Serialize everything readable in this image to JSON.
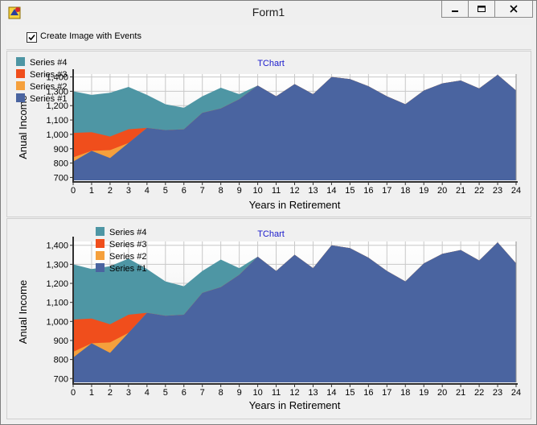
{
  "window": {
    "title": "Form1",
    "app_icon": "delphi-app-icon"
  },
  "controls": {
    "checkbox_label": "Create Image with Events",
    "checkbox_checked": true
  },
  "colors": {
    "series1": "#4a64a0",
    "series2": "#f5a03c",
    "series3": "#f04e1c",
    "series4": "#4e96a4",
    "title": "#1b1bcc"
  },
  "chart_data": [
    {
      "type": "area",
      "title": "TChart",
      "xlabel": "Years in Retirement",
      "ylabel": "Anual Income",
      "xlim": [
        0,
        24
      ],
      "ylim": [
        680,
        1420
      ],
      "yticks": [
        "700",
        "800",
        "900",
        "1,000",
        "1,100",
        "1,200",
        "1,300",
        "1,400"
      ],
      "xticks": [
        "0",
        "1",
        "2",
        "3",
        "4",
        "5",
        "6",
        "7",
        "8",
        "9",
        "10",
        "11",
        "12",
        "13",
        "14",
        "15",
        "16",
        "17",
        "18",
        "19",
        "20",
        "21",
        "22",
        "23",
        "24"
      ],
      "legend": [
        "Series #4",
        "Series #3",
        "Series #2",
        "Series #1"
      ],
      "series": [
        {
          "name": "Series #1",
          "values": [
            810,
            885,
            835,
            940,
            1045,
            1030,
            1035,
            1150,
            1180,
            1245,
            1340,
            1265,
            1350,
            1280,
            1400,
            1385,
            1335,
            1265,
            1210,
            1305,
            1355,
            1375,
            1320,
            1415,
            1305
          ]
        },
        {
          "name": "Series #2",
          "values": [
            840,
            885,
            890,
            940,
            1045,
            1030,
            1035,
            1150,
            1180,
            1245,
            1340,
            1265,
            1350,
            1280,
            1400,
            1385,
            1335,
            1265,
            1210,
            1305,
            1355,
            1375,
            1320,
            1415,
            1305
          ]
        },
        {
          "name": "Series #3",
          "values": [
            1010,
            1015,
            985,
            1035,
            1045,
            1030,
            1035,
            1150,
            1180,
            1245,
            1340,
            1265,
            1350,
            1280,
            1400,
            1385,
            1335,
            1265,
            1210,
            1305,
            1355,
            1375,
            1320,
            1415,
            1305
          ]
        },
        {
          "name": "Series #4",
          "values": [
            1300,
            1275,
            1290,
            1330,
            1275,
            1210,
            1185,
            1265,
            1325,
            1280,
            1340,
            1265,
            1350,
            1280,
            1400,
            1385,
            1335,
            1265,
            1210,
            1305,
            1355,
            1375,
            1320,
            1415,
            1305
          ]
        }
      ]
    },
    {
      "type": "area",
      "title": "TChart",
      "xlabel": "Years in Retirement",
      "ylabel": "Anual Income",
      "xlim": [
        0,
        24
      ],
      "ylim": [
        680,
        1420
      ],
      "yticks": [
        "700",
        "800",
        "900",
        "1,000",
        "1,100",
        "1,200",
        "1,300",
        "1,400"
      ],
      "xticks": [
        "0",
        "1",
        "2",
        "3",
        "4",
        "5",
        "6",
        "7",
        "8",
        "9",
        "10",
        "11",
        "12",
        "13",
        "14",
        "15",
        "16",
        "17",
        "18",
        "19",
        "20",
        "21",
        "22",
        "23",
        "24"
      ],
      "legend": [
        "Series #4",
        "Series #3",
        "Series #2",
        "Series #1"
      ],
      "series": [
        {
          "name": "Series #1",
          "values": [
            810,
            885,
            835,
            940,
            1045,
            1030,
            1035,
            1150,
            1180,
            1245,
            1340,
            1265,
            1350,
            1280,
            1400,
            1385,
            1335,
            1265,
            1210,
            1305,
            1355,
            1375,
            1320,
            1415,
            1305
          ]
        },
        {
          "name": "Series #2",
          "values": [
            840,
            885,
            890,
            940,
            1045,
            1030,
            1035,
            1150,
            1180,
            1245,
            1340,
            1265,
            1350,
            1280,
            1400,
            1385,
            1335,
            1265,
            1210,
            1305,
            1355,
            1375,
            1320,
            1415,
            1305
          ]
        },
        {
          "name": "Series #3",
          "values": [
            1010,
            1015,
            985,
            1035,
            1045,
            1030,
            1035,
            1150,
            1180,
            1245,
            1340,
            1265,
            1350,
            1280,
            1400,
            1385,
            1335,
            1265,
            1210,
            1305,
            1355,
            1375,
            1320,
            1415,
            1305
          ]
        },
        {
          "name": "Series #4",
          "values": [
            1300,
            1275,
            1290,
            1330,
            1275,
            1210,
            1185,
            1265,
            1325,
            1280,
            1340,
            1265,
            1350,
            1280,
            1400,
            1385,
            1335,
            1265,
            1210,
            1305,
            1355,
            1375,
            1320,
            1415,
            1305
          ]
        }
      ]
    }
  ]
}
